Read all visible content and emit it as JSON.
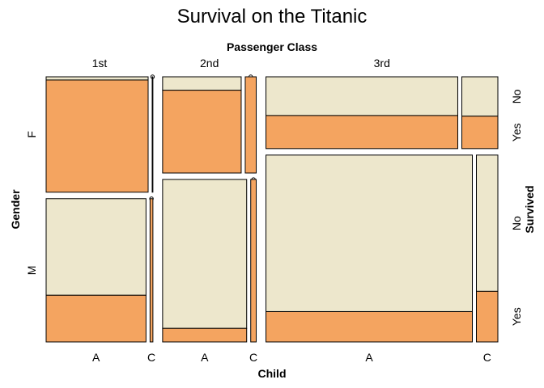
{
  "chart_data": {
    "type": "mosaic",
    "title": "Survival on the Titanic",
    "top_axis_title": "Passenger Class",
    "bottom_axis_title": "Child",
    "left_axis_title": "Gender",
    "right_axis_title": "Survived",
    "class_labels": [
      "1st",
      "2nd",
      "3rd"
    ],
    "child_labels": [
      "A",
      "C"
    ],
    "gender_labels": [
      "F",
      "M"
    ],
    "survived_labels": [
      "No",
      "Yes"
    ],
    "colors": {
      "No": "#ede7cc",
      "Yes": "#f4a460"
    },
    "classes": [
      {
        "name": "1st",
        "groups": [
          {
            "gender": "F",
            "cells": [
              {
                "child": "A",
                "no": 4,
                "yes": 140
              },
              {
                "child": "C",
                "no": 0,
                "yes": 1
              }
            ]
          },
          {
            "gender": "M",
            "cells": [
              {
                "child": "A",
                "no": 118,
                "yes": 57
              },
              {
                "child": "C",
                "no": 0,
                "yes": 5
              }
            ]
          }
        ]
      },
      {
        "name": "2nd",
        "groups": [
          {
            "gender": "F",
            "cells": [
              {
                "child": "A",
                "no": 13,
                "yes": 80
              },
              {
                "child": "C",
                "no": 0,
                "yes": 13
              }
            ]
          },
          {
            "gender": "M",
            "cells": [
              {
                "child": "A",
                "no": 154,
                "yes": 14
              },
              {
                "child": "C",
                "no": 0,
                "yes": 11
              }
            ]
          }
        ]
      },
      {
        "name": "3rd",
        "groups": [
          {
            "gender": "F",
            "cells": [
              {
                "child": "A",
                "no": 89,
                "yes": 76
              },
              {
                "child": "C",
                "no": 17,
                "yes": 14
              }
            ]
          },
          {
            "gender": "M",
            "cells": [
              {
                "child": "A",
                "no": 387,
                "yes": 75
              },
              {
                "child": "C",
                "no": 35,
                "yes": 13
              }
            ]
          }
        ]
      }
    ]
  }
}
